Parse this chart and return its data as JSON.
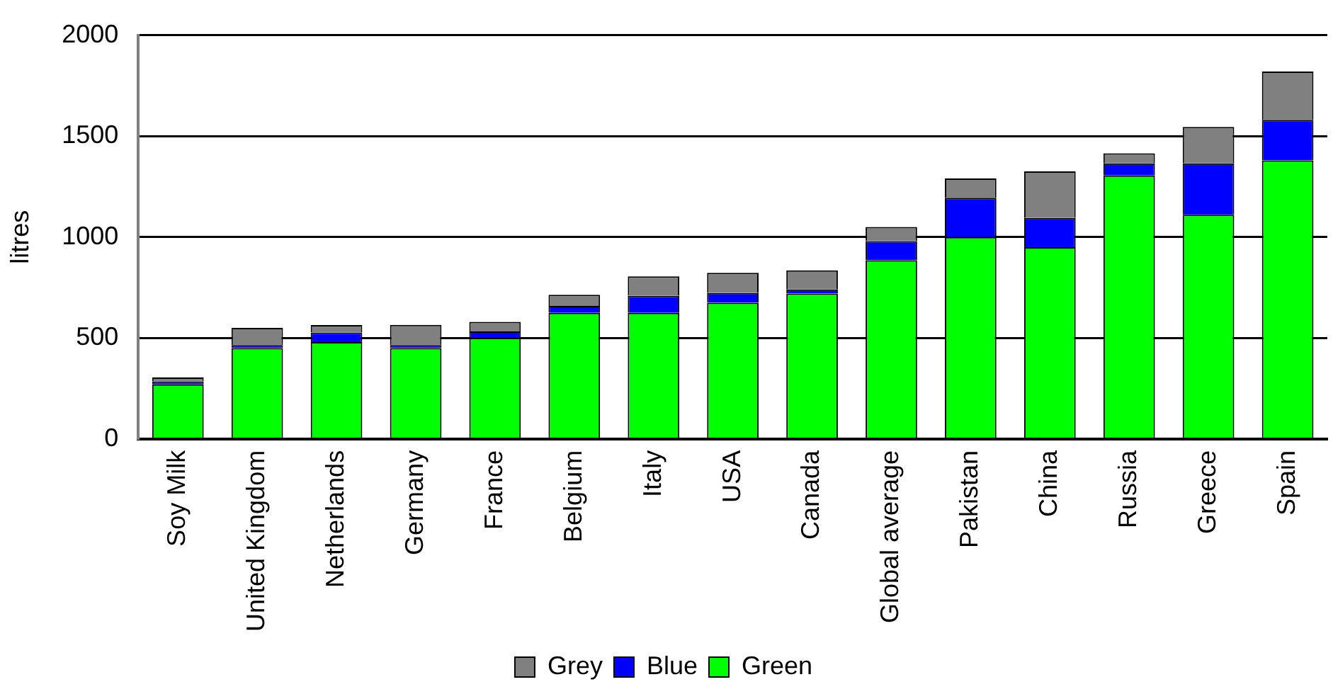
{
  "chart_data": {
    "type": "bar",
    "stacked": true,
    "ylabel": "litres",
    "categories": [
      "Soy Milk",
      "United Kingdom",
      "Netherlands",
      "Germany",
      "France",
      "Belgium",
      "Italy",
      "USA",
      "Canada",
      "Global average",
      "Pakistan",
      "China",
      "Russia",
      "Greece",
      "Spain"
    ],
    "series": [
      {
        "name": "Green",
        "color": "#00ff00",
        "values": [
          270,
          450,
          480,
          450,
          500,
          625,
          625,
          675,
          720,
          885,
          1000,
          950,
          1305,
          1110,
          1380
        ]
      },
      {
        "name": "Blue",
        "color": "#0000ff",
        "values": [
          15,
          15,
          47,
          15,
          33,
          34,
          85,
          48,
          20,
          95,
          195,
          145,
          60,
          255,
          200
        ]
      },
      {
        "name": "Grey",
        "color": "#808080",
        "values": [
          20,
          85,
          37,
          100,
          47,
          55,
          95,
          100,
          95,
          70,
          95,
          230,
          50,
          180,
          240
        ]
      }
    ],
    "ylim": [
      0,
      2000
    ],
    "yticks": [
      0,
      500,
      1000,
      1500,
      2000
    ],
    "grid": "y",
    "legend": "bottom"
  }
}
